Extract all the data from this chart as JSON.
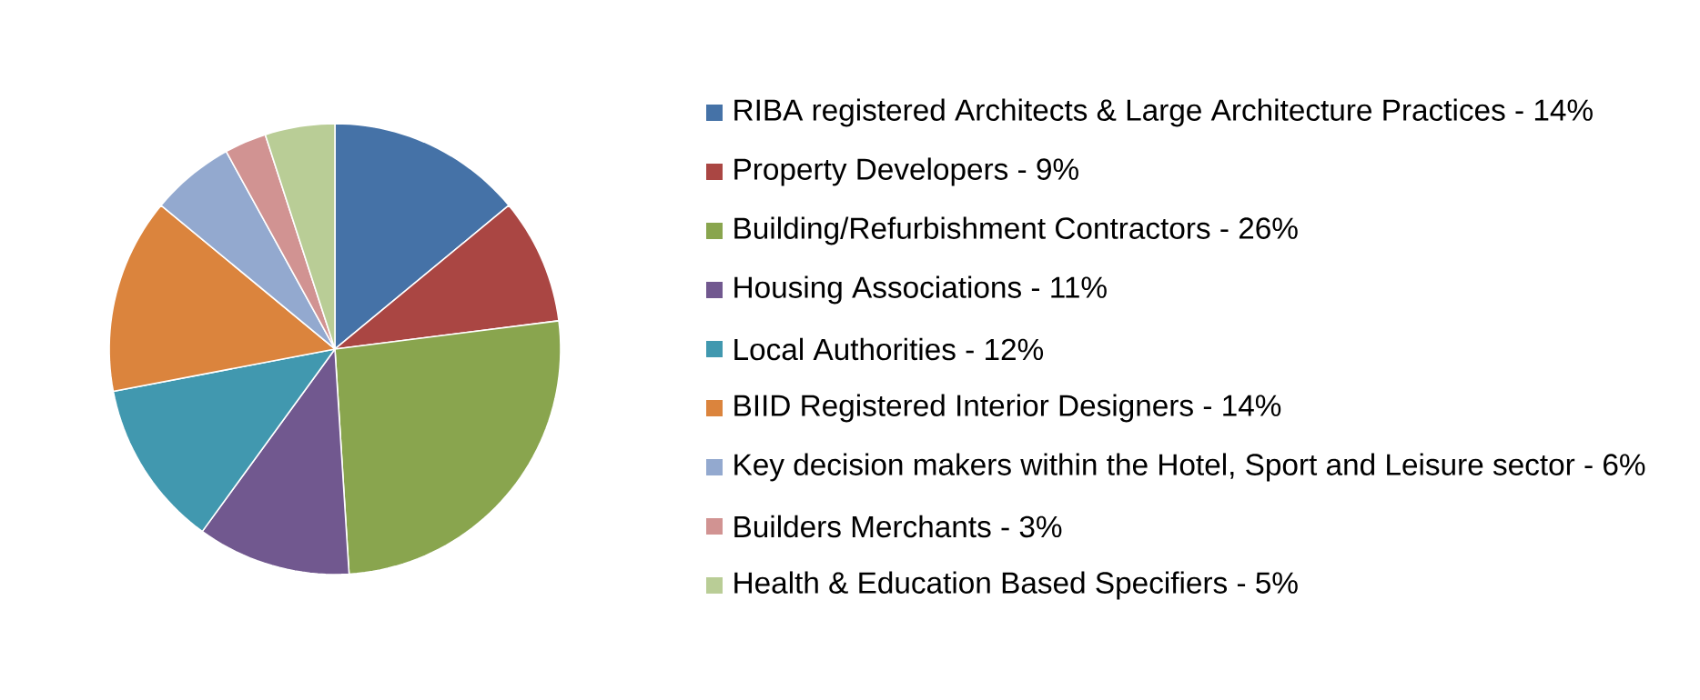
{
  "chart_data": {
    "type": "pie",
    "categories": [
      "RIBA registered Architects & Large Architecture Practices - 14%",
      "Property Developers - 9%",
      "Building/Refurbishment Contractors - 26%",
      "Housing Associations - 11%",
      "Local Authorities - 12%",
      "BIID Registered Interior Designers - 14%",
      "Key decision makers within the Hotel, Sport and Leisure sector - 6%",
      "Builders Merchants - 3%",
      "Health & Education Based Specifiers - 5%"
    ],
    "values": [
      14,
      9,
      26,
      11,
      12,
      14,
      6,
      3,
      5
    ],
    "colors": [
      "#4572a7",
      "#aa4643",
      "#89a54e",
      "#71588f",
      "#4198af",
      "#db843d",
      "#93a9cf",
      "#d19392",
      "#b9cd96"
    ],
    "legend": "right"
  }
}
